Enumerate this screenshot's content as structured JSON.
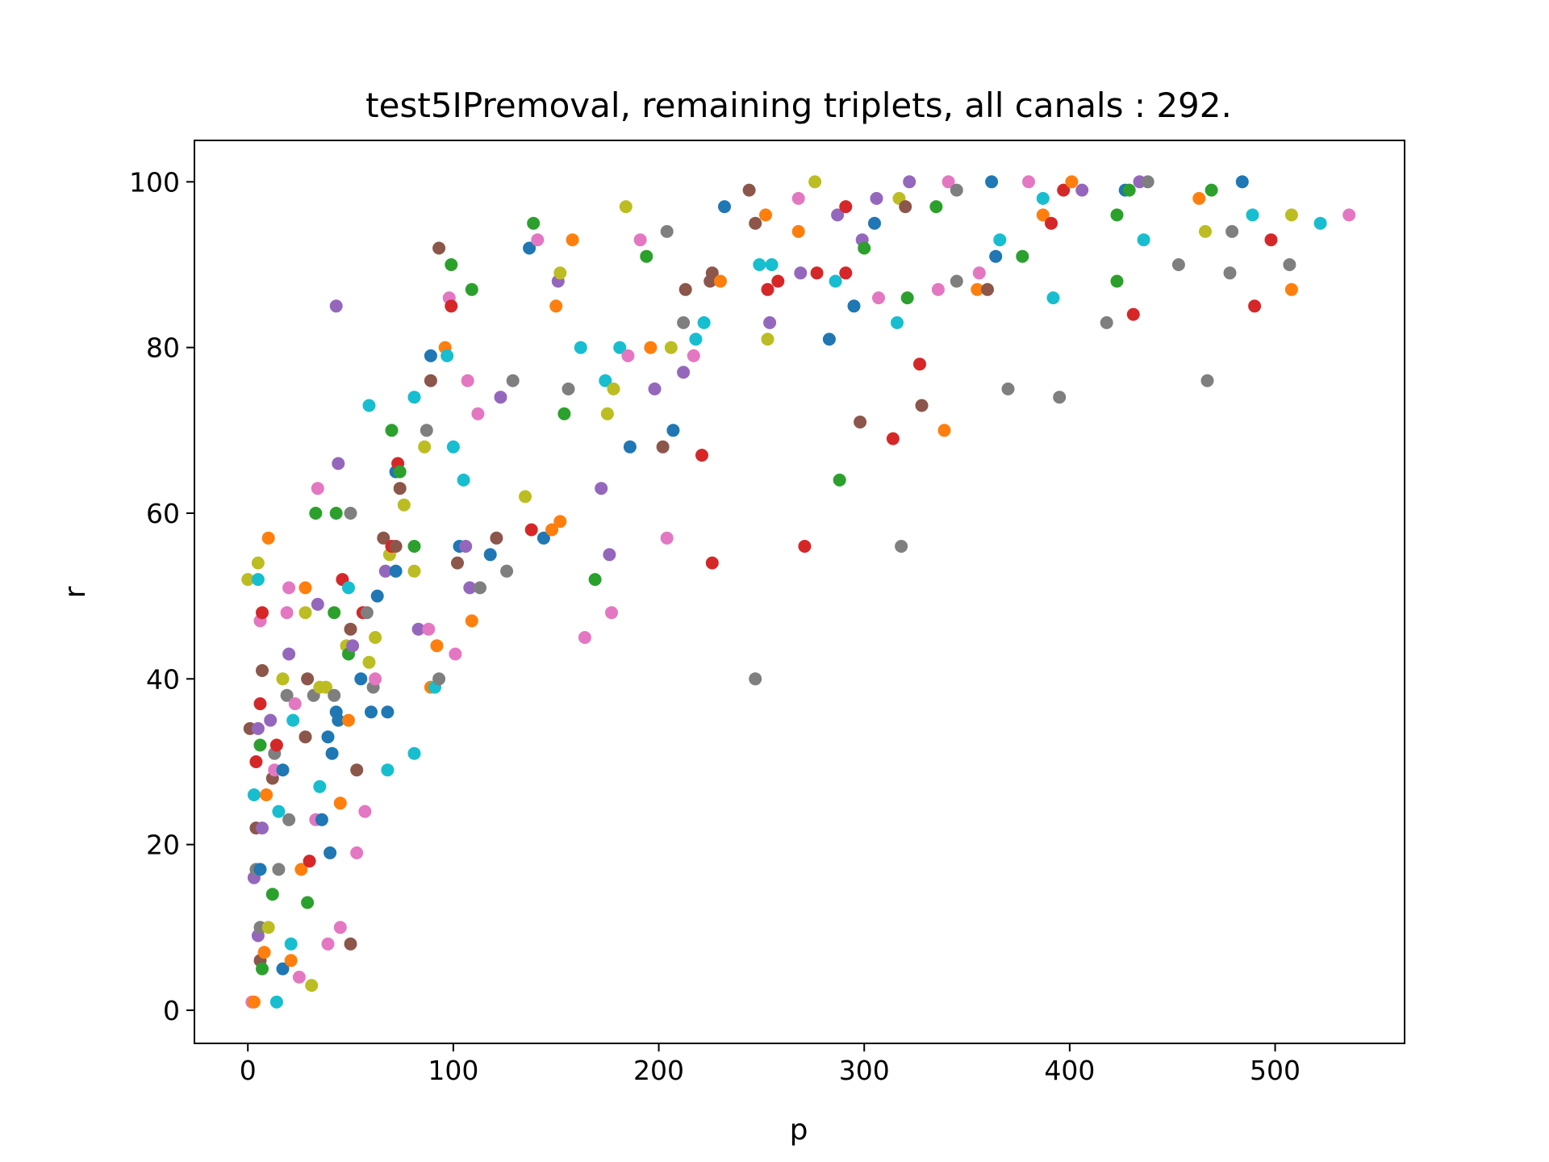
{
  "chart_data": {
    "type": "scatter",
    "title": "test5IPremoval, remaining triplets, all canals : 292.",
    "xlabel": "p",
    "ylabel": "r",
    "xlim": [
      -26,
      563
    ],
    "ylim": [
      -4,
      105
    ],
    "x_ticks": [
      0,
      100,
      200,
      300,
      400,
      500
    ],
    "y_ticks": [
      0,
      20,
      40,
      60,
      80,
      100
    ],
    "x_tick_labels": [
      "0",
      "100",
      "200",
      "300",
      "400",
      "500"
    ],
    "y_tick_labels": [
      "0",
      "20",
      "40",
      "60",
      "80",
      "100"
    ],
    "grid": false,
    "legend": "none",
    "palette": [
      "#1f77b4",
      "#ff7f0e",
      "#2ca02c",
      "#d62728",
      "#9467bd",
      "#8c564b",
      "#e377c2",
      "#7f7f7f",
      "#bcbd22",
      "#17becf"
    ],
    "points": [
      [
        0,
        52,
        8
      ],
      [
        1,
        34,
        5
      ],
      [
        2,
        1,
        6
      ],
      [
        3,
        1,
        1
      ],
      [
        3,
        26,
        9
      ],
      [
        3,
        16,
        4
      ],
      [
        4,
        30,
        3
      ],
      [
        4,
        22,
        5
      ],
      [
        4,
        17,
        7
      ],
      [
        5,
        52,
        9
      ],
      [
        5,
        54,
        8
      ],
      [
        5,
        34,
        4
      ],
      [
        5,
        9,
        4
      ],
      [
        6,
        47,
        6
      ],
      [
        6,
        37,
        3
      ],
      [
        6,
        32,
        2
      ],
      [
        6,
        17,
        0
      ],
      [
        6,
        6,
        5
      ],
      [
        6,
        10,
        7
      ],
      [
        7,
        48,
        3
      ],
      [
        7,
        41,
        5
      ],
      [
        7,
        22,
        4
      ],
      [
        7,
        5,
        2
      ],
      [
        8,
        7,
        1
      ],
      [
        9,
        26,
        1
      ],
      [
        10,
        57,
        1
      ],
      [
        10,
        10,
        8
      ],
      [
        11,
        35,
        4
      ],
      [
        12,
        28,
        5
      ],
      [
        12,
        14,
        2
      ],
      [
        13,
        31,
        7
      ],
      [
        13,
        29,
        6
      ],
      [
        14,
        32,
        3
      ],
      [
        14,
        1,
        9
      ],
      [
        15,
        24,
        9
      ],
      [
        15,
        17,
        7
      ],
      [
        17,
        29,
        0
      ],
      [
        17,
        5,
        0
      ],
      [
        17,
        40,
        8
      ],
      [
        19,
        48,
        6
      ],
      [
        19,
        38,
        7
      ],
      [
        20,
        51,
        6
      ],
      [
        20,
        43,
        4
      ],
      [
        20,
        23,
        7
      ],
      [
        21,
        8,
        9
      ],
      [
        21,
        6,
        1
      ],
      [
        22,
        35,
        9
      ],
      [
        23,
        37,
        6
      ],
      [
        25,
        4,
        6
      ],
      [
        26,
        17,
        1
      ],
      [
        28,
        51,
        1
      ],
      [
        28,
        48,
        8
      ],
      [
        28,
        33,
        5
      ],
      [
        29,
        40,
        5
      ],
      [
        29,
        13,
        2
      ],
      [
        30,
        18,
        3
      ],
      [
        31,
        3,
        8
      ],
      [
        32,
        38,
        7
      ],
      [
        33,
        60,
        2
      ],
      [
        33,
        23,
        6
      ],
      [
        34,
        63,
        6
      ],
      [
        34,
        49,
        4
      ],
      [
        35,
        39,
        8
      ],
      [
        35,
        27,
        9
      ],
      [
        36,
        23,
        0
      ],
      [
        38,
        39,
        8
      ],
      [
        39,
        33,
        0
      ],
      [
        39,
        8,
        6
      ],
      [
        40,
        19,
        0
      ],
      [
        41,
        31,
        0
      ],
      [
        42,
        48,
        2
      ],
      [
        42,
        38,
        7
      ],
      [
        43,
        60,
        2
      ],
      [
        43,
        36,
        0
      ],
      [
        43,
        85,
        4
      ],
      [
        44,
        66,
        4
      ],
      [
        44,
        35,
        0
      ],
      [
        45,
        25,
        1
      ],
      [
        45,
        10,
        6
      ],
      [
        46,
        52,
        3
      ],
      [
        48,
        44,
        8
      ],
      [
        49,
        35,
        1
      ],
      [
        49,
        51,
        9
      ],
      [
        49,
        43,
        2
      ],
      [
        50,
        60,
        7
      ],
      [
        50,
        46,
        5
      ],
      [
        50,
        8,
        5
      ],
      [
        51,
        44,
        4
      ],
      [
        53,
        29,
        5
      ],
      [
        53,
        19,
        6
      ],
      [
        55,
        40,
        0
      ],
      [
        56,
        48,
        3
      ],
      [
        57,
        24,
        6
      ],
      [
        58,
        48,
        7
      ],
      [
        59,
        73,
        9
      ],
      [
        59,
        42,
        8
      ],
      [
        60,
        36,
        0
      ],
      [
        61,
        39,
        7
      ],
      [
        62,
        40,
        6
      ],
      [
        62,
        45,
        8
      ],
      [
        63,
        50,
        0
      ],
      [
        66,
        57,
        5
      ],
      [
        67,
        53,
        4
      ],
      [
        68,
        29,
        9
      ],
      [
        68,
        36,
        0
      ],
      [
        69,
        55,
        8
      ],
      [
        70,
        70,
        2
      ],
      [
        70,
        56,
        3
      ],
      [
        72,
        65,
        0
      ],
      [
        72,
        56,
        5
      ],
      [
        72,
        53,
        0
      ],
      [
        73,
        66,
        3
      ],
      [
        74,
        65,
        2
      ],
      [
        74,
        63,
        5
      ],
      [
        76,
        61,
        8
      ],
      [
        81,
        74,
        9
      ],
      [
        81,
        31,
        9
      ],
      [
        81,
        53,
        8
      ],
      [
        81,
        56,
        2
      ],
      [
        83,
        46,
        4
      ],
      [
        86,
        68,
        8
      ],
      [
        87,
        70,
        7
      ],
      [
        88,
        46,
        6
      ],
      [
        89,
        76,
        5
      ],
      [
        89,
        79,
        0
      ],
      [
        89,
        39,
        1
      ],
      [
        91,
        39,
        9
      ],
      [
        92,
        44,
        1
      ],
      [
        93,
        40,
        7
      ],
      [
        93,
        92,
        5
      ],
      [
        96,
        80,
        1
      ],
      [
        97,
        79,
        9
      ],
      [
        98,
        86,
        6
      ],
      [
        99,
        85,
        3
      ],
      [
        99,
        90,
        2
      ],
      [
        100,
        68,
        9
      ],
      [
        101,
        43,
        6
      ],
      [
        102,
        54,
        5
      ],
      [
        103,
        56,
        0
      ],
      [
        105,
        64,
        9
      ],
      [
        106,
        56,
        4
      ],
      [
        107,
        76,
        6
      ],
      [
        108,
        51,
        4
      ],
      [
        109,
        47,
        1
      ],
      [
        109,
        87,
        2
      ],
      [
        112,
        72,
        6
      ],
      [
        113,
        51,
        7
      ],
      [
        118,
        55,
        0
      ],
      [
        121,
        57,
        5
      ],
      [
        123,
        74,
        4
      ],
      [
        126,
        53,
        7
      ],
      [
        129,
        76,
        7
      ],
      [
        135,
        62,
        8
      ],
      [
        137,
        92,
        0
      ],
      [
        138,
        58,
        3
      ],
      [
        139,
        95,
        2
      ],
      [
        141,
        93,
        6
      ],
      [
        144,
        57,
        0
      ],
      [
        148,
        58,
        1
      ],
      [
        150,
        85,
        1
      ],
      [
        151,
        88,
        4
      ],
      [
        152,
        59,
        1
      ],
      [
        152,
        89,
        8
      ],
      [
        154,
        72,
        2
      ],
      [
        156,
        75,
        7
      ],
      [
        158,
        93,
        1
      ],
      [
        162,
        80,
        9
      ],
      [
        164,
        45,
        6
      ],
      [
        169,
        52,
        2
      ],
      [
        172,
        63,
        4
      ],
      [
        174,
        76,
        9
      ],
      [
        175,
        72,
        8
      ],
      [
        176,
        55,
        4
      ],
      [
        177,
        48,
        6
      ],
      [
        178,
        75,
        8
      ],
      [
        181,
        80,
        9
      ],
      [
        184,
        97,
        8
      ],
      [
        185,
        79,
        6
      ],
      [
        186,
        68,
        0
      ],
      [
        191,
        93,
        6
      ],
      [
        194,
        91,
        2
      ],
      [
        196,
        80,
        1
      ],
      [
        198,
        75,
        4
      ],
      [
        202,
        68,
        5
      ],
      [
        204,
        94,
        7
      ],
      [
        204,
        57,
        6
      ],
      [
        206,
        80,
        8
      ],
      [
        207,
        70,
        0
      ],
      [
        212,
        83,
        7
      ],
      [
        212,
        77,
        4
      ],
      [
        213,
        87,
        5
      ],
      [
        217,
        79,
        6
      ],
      [
        218,
        81,
        9
      ],
      [
        221,
        67,
        3
      ],
      [
        222,
        83,
        9
      ],
      [
        225,
        88,
        5
      ],
      [
        226,
        54,
        3
      ],
      [
        226,
        89,
        5
      ],
      [
        230,
        88,
        1
      ],
      [
        232,
        97,
        0
      ],
      [
        244,
        99,
        5
      ],
      [
        247,
        40,
        7
      ],
      [
        247,
        95,
        5
      ],
      [
        249,
        90,
        9
      ],
      [
        252,
        96,
        1
      ],
      [
        253,
        81,
        8
      ],
      [
        253,
        87,
        3
      ],
      [
        254,
        83,
        4
      ],
      [
        255,
        90,
        9
      ],
      [
        258,
        88,
        3
      ],
      [
        268,
        98,
        6
      ],
      [
        268,
        94,
        1
      ],
      [
        269,
        89,
        4
      ],
      [
        271,
        56,
        3
      ],
      [
        276,
        100,
        8
      ],
      [
        277,
        89,
        3
      ],
      [
        283,
        81,
        0
      ],
      [
        286,
        88,
        9
      ],
      [
        287,
        96,
        4
      ],
      [
        288,
        64,
        2
      ],
      [
        291,
        97,
        3
      ],
      [
        291,
        89,
        3
      ],
      [
        295,
        85,
        0
      ],
      [
        298,
        71,
        5
      ],
      [
        299,
        93,
        4
      ],
      [
        300,
        92,
        2
      ],
      [
        305,
        95,
        0
      ],
      [
        306,
        98,
        4
      ],
      [
        307,
        86,
        6
      ],
      [
        314,
        69,
        3
      ],
      [
        316,
        83,
        9
      ],
      [
        317,
        98,
        8
      ],
      [
        318,
        56,
        7
      ],
      [
        320,
        97,
        5
      ],
      [
        321,
        86,
        2
      ],
      [
        322,
        100,
        4
      ],
      [
        327,
        78,
        3
      ],
      [
        328,
        73,
        5
      ],
      [
        335,
        97,
        2
      ],
      [
        336,
        87,
        6
      ],
      [
        339,
        70,
        1
      ],
      [
        341,
        100,
        6
      ],
      [
        345,
        99,
        7
      ],
      [
        345,
        88,
        7
      ],
      [
        355,
        87,
        1
      ],
      [
        356,
        89,
        6
      ],
      [
        360,
        87,
        5
      ],
      [
        362,
        100,
        0
      ],
      [
        364,
        91,
        0
      ],
      [
        366,
        93,
        9
      ],
      [
        370,
        75,
        7
      ],
      [
        377,
        91,
        2
      ],
      [
        380,
        100,
        6
      ],
      [
        387,
        96,
        1
      ],
      [
        387,
        98,
        9
      ],
      [
        391,
        95,
        3
      ],
      [
        392,
        86,
        9
      ],
      [
        395,
        74,
        7
      ],
      [
        397,
        99,
        3
      ],
      [
        401,
        100,
        1
      ],
      [
        406,
        99,
        4
      ],
      [
        418,
        83,
        7
      ],
      [
        423,
        96,
        2
      ],
      [
        423,
        88,
        2
      ],
      [
        427,
        99,
        0
      ],
      [
        429,
        99,
        2
      ],
      [
        431,
        84,
        3
      ],
      [
        434,
        100,
        4
      ],
      [
        436,
        93,
        9
      ],
      [
        438,
        100,
        7
      ],
      [
        453,
        90,
        7
      ],
      [
        463,
        98,
        1
      ],
      [
        466,
        94,
        8
      ],
      [
        467,
        76,
        7
      ],
      [
        469,
        99,
        2
      ],
      [
        478,
        89,
        7
      ],
      [
        479,
        94,
        7
      ],
      [
        484,
        100,
        0
      ],
      [
        489,
        96,
        9
      ],
      [
        490,
        85,
        3
      ],
      [
        498,
        93,
        3
      ],
      [
        507,
        90,
        7
      ],
      [
        508,
        96,
        8
      ],
      [
        508,
        87,
        1
      ],
      [
        522,
        95,
        9
      ],
      [
        536,
        96,
        6
      ]
    ]
  }
}
